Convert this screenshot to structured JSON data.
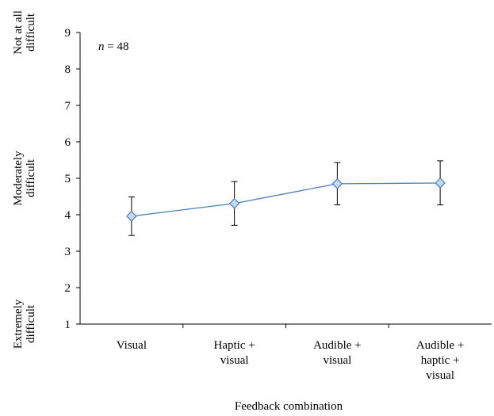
{
  "chart_data": {
    "type": "line",
    "title": "",
    "xlabel": "Feedback combination",
    "ylabel": "",
    "ylim": [
      1,
      9
    ],
    "yticks": [
      1,
      2,
      3,
      4,
      5,
      6,
      7,
      8,
      9
    ],
    "grid": false,
    "annotation": {
      "italic": "n",
      "text": " = 48"
    },
    "y_scale_labels": [
      {
        "value": 9,
        "lines": [
          "Not at all",
          "difficult"
        ]
      },
      {
        "value": 5,
        "lines": [
          "Moderately",
          "difficult"
        ]
      },
      {
        "value": 1,
        "lines": [
          "Extremely",
          "difficult"
        ]
      }
    ],
    "categories": [
      [
        "Visual"
      ],
      [
        "Haptic +",
        "visual"
      ],
      [
        "Audible +",
        "visual"
      ],
      [
        "Audible +",
        "haptic +",
        "visual"
      ]
    ],
    "series": [
      {
        "values": [
          3.96,
          4.31,
          4.85,
          4.87
        ],
        "error_low": [
          3.43,
          3.71,
          4.27,
          4.27
        ],
        "error_high": [
          4.49,
          4.91,
          5.43,
          5.48
        ],
        "color": "#4a7ebb",
        "marker_fill": "#c5d9f1",
        "marker": "diamond"
      }
    ]
  }
}
